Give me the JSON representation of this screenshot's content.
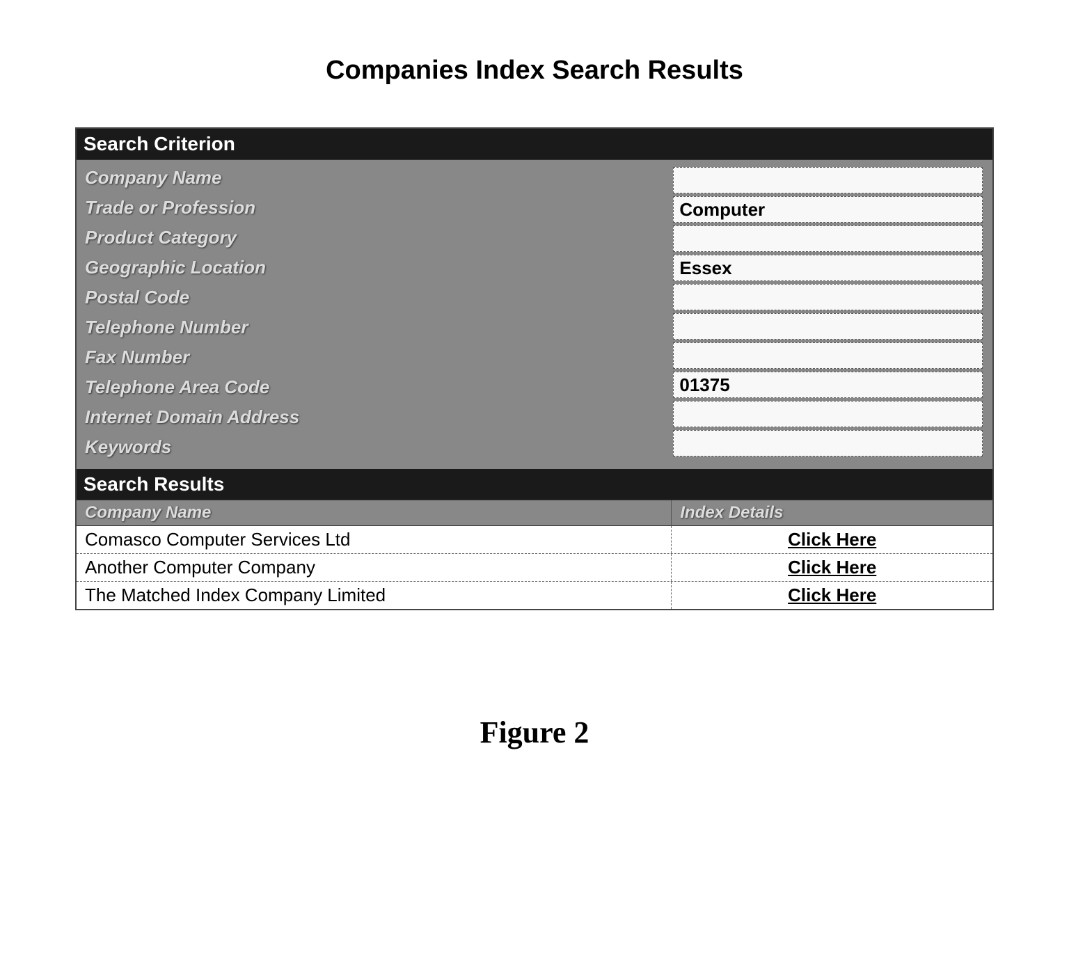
{
  "page": {
    "title": "Companies Index Search Results",
    "figure_label": "Figure 2"
  },
  "criterion": {
    "header": "Search Criterion",
    "fields": [
      {
        "label": "Company Name",
        "value": ""
      },
      {
        "label": "Trade or Profession",
        "value": "Computer"
      },
      {
        "label": "Product Category",
        "value": ""
      },
      {
        "label": "Geographic Location",
        "value": "Essex"
      },
      {
        "label": "Postal Code",
        "value": ""
      },
      {
        "label": "Telephone Number",
        "value": ""
      },
      {
        "label": "Fax Number",
        "value": ""
      },
      {
        "label": "Telephone Area Code",
        "value": "01375"
      },
      {
        "label": "Internet Domain Address",
        "value": ""
      },
      {
        "label": "Keywords",
        "value": ""
      }
    ]
  },
  "results": {
    "header": "Search Results",
    "columns": {
      "company": "Company Name",
      "details": "Index Details"
    },
    "link_text": "Click Here",
    "rows": [
      {
        "company": "Comasco Computer Services Ltd"
      },
      {
        "company": "Another Computer Company"
      },
      {
        "company": "The Matched Index Company Limited"
      }
    ]
  },
  "style": {
    "header_bg": "#1a1a1a",
    "header_fg": "#ffffff",
    "body_gray_bg": "#888888",
    "label_fg": "#dddddd",
    "value_bg": "#f8f8f8",
    "row_bg": "#ffffff",
    "border_color": "#444444"
  }
}
